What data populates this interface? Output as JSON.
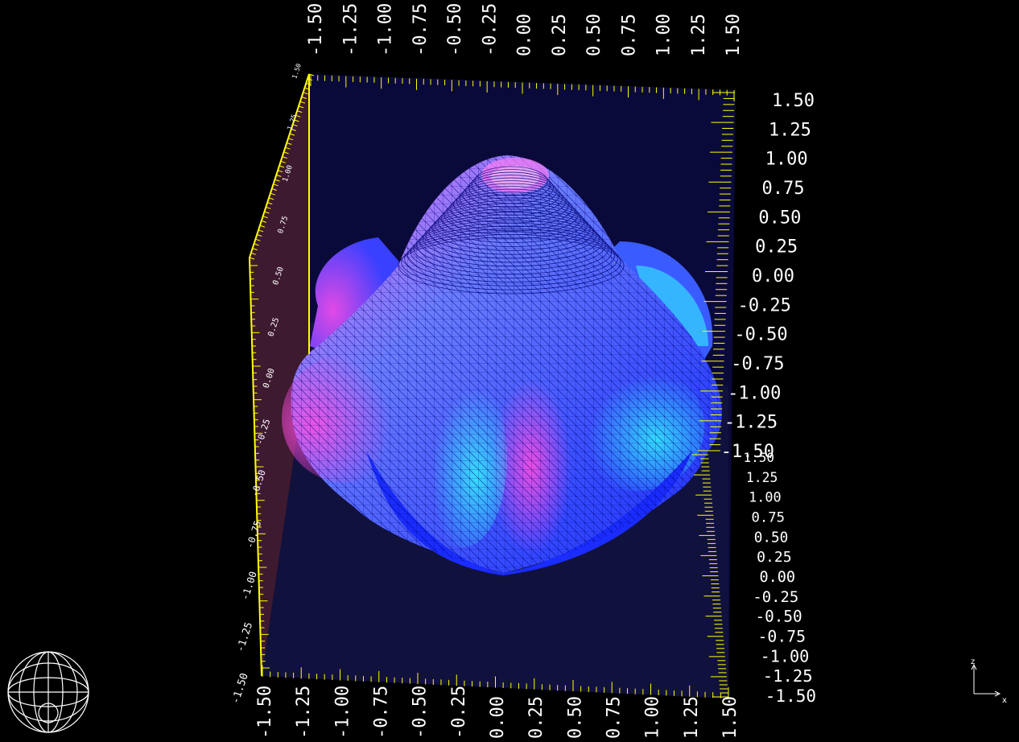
{
  "scene": {
    "background": "#000000",
    "axis_color": "#ffff00",
    "tick_label_color": "#ffffff",
    "back_panel_color": "#0a0a3a",
    "floor_panel_color": "#12123e",
    "side_panel_color": "#3e1a30",
    "surface_colors": {
      "base": "#0a1cff",
      "mid": "#3a5cff",
      "highlight_pink": "#ff4be0",
      "highlight_cyan": "#33ffff",
      "mesh_line": "#000070"
    },
    "surface_shape": "rounded-bell-with-lobes",
    "navigation_widget": "wireframe-sphere",
    "axes_triad": {
      "z_label": "z",
      "x_label": "x"
    },
    "top_axis_ticks": [
      "-1.50",
      "-1.25",
      "-1.00",
      "-0.75",
      "-0.50",
      "-0.25",
      "0.00",
      "0.25",
      "0.50",
      "0.75",
      "1.00",
      "1.25",
      "1.50"
    ],
    "bottom_axis_ticks": [
      "-1.50",
      "-1.25",
      "-1.00",
      "-0.75",
      "-0.50",
      "-0.25",
      "0.00",
      "0.25",
      "0.50",
      "0.75",
      "1.00",
      "1.25",
      "1.50"
    ],
    "right_upper_ticks": [
      "1.50",
      "1.25",
      "1.00",
      "0.75",
      "0.50",
      "0.25",
      "0.00",
      "-0.25",
      "-0.50",
      "-0.75",
      "-1.00",
      "-1.25",
      "-1.50"
    ],
    "right_lower_ticks": [
      "1.50",
      "1.25",
      "1.00",
      "0.75",
      "0.50",
      "0.25",
      "0.00",
      "-0.25",
      "-0.50",
      "-0.75",
      "-1.00",
      "-1.25",
      "-1.50"
    ],
    "left_axis_ticks": [
      "-1.50",
      "-1.25",
      "-1.00",
      "-0.75",
      "-0.50",
      "-0.25",
      "0.00",
      "0.25",
      "0.50",
      "0.75",
      "1.00",
      "1.25",
      "1.50"
    ]
  }
}
